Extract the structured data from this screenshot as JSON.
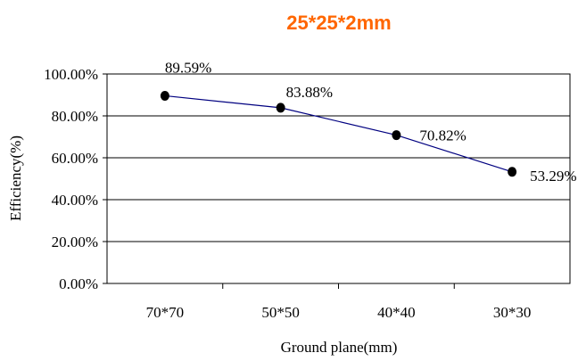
{
  "chart_data": {
    "type": "line",
    "title": "25*25*2mm",
    "xlabel": "Ground plane(mm)",
    "ylabel": "Efficiency(%)",
    "categories": [
      "70*70",
      "50*50",
      "40*40",
      "30*30"
    ],
    "series": [
      {
        "values": [
          89.59,
          83.88,
          70.82,
          53.29
        ]
      }
    ],
    "data_labels": [
      "89.59%",
      "83.88%",
      "70.82%",
      "53.29%"
    ],
    "ylim": [
      0,
      100
    ],
    "yticks": [
      "0.00%",
      "20.00%",
      "40.00%",
      "60.00%",
      "80.00%",
      "100.00%"
    ],
    "grid": true,
    "legend": "none",
    "colors": {
      "title": "#ff6600",
      "line": "#000080",
      "marker": "#000000",
      "grid": "#000000"
    }
  }
}
